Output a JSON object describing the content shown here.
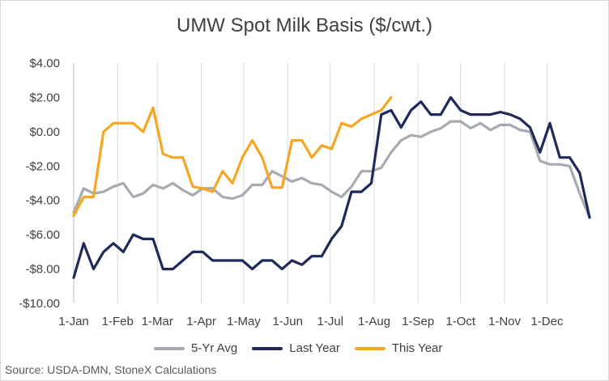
{
  "chart_data": {
    "type": "line",
    "title": "UMW Spot Milk Basis ($/cwt.)",
    "ylim": [
      -10,
      4
    ],
    "y_ticks": [
      4,
      2,
      0,
      -2,
      -4,
      -6,
      -8,
      -10
    ],
    "y_tick_labels": [
      "$4.00",
      "$2.00",
      "$0.00",
      "-$2.00",
      "-$4.00",
      "-$6.00",
      "-$8.00",
      "-$10.00"
    ],
    "x_ticks": [
      {
        "label": "1-Jan",
        "week": 0
      },
      {
        "label": "1-Feb",
        "week": 4.43
      },
      {
        "label": "1-Mar",
        "week": 8.43
      },
      {
        "label": "1-Apr",
        "week": 12.86
      },
      {
        "label": "1-May",
        "week": 17.14
      },
      {
        "label": "1-Jun",
        "week": 21.57
      },
      {
        "label": "1-Jul",
        "week": 25.86
      },
      {
        "label": "1-Aug",
        "week": 30.29
      },
      {
        "label": "1-Sep",
        "week": 34.71
      },
      {
        "label": "1-Oct",
        "week": 39.0
      },
      {
        "label": "1-Nov",
        "week": 43.43
      },
      {
        "label": "1-Dec",
        "week": 47.71
      }
    ],
    "x_axis_unit": "weeks from 1-Jan",
    "xlim": [
      0,
      52
    ],
    "grid": "vertical",
    "legend_position": "bottom",
    "series": [
      {
        "name": "5-Yr Avg",
        "color": "#a6abb1",
        "values": [
          -4.7,
          -3.3,
          -3.6,
          -3.5,
          -3.2,
          -3.0,
          -3.8,
          -3.6,
          -3.1,
          -3.3,
          -3.0,
          -3.4,
          -3.7,
          -3.3,
          -3.3,
          -3.8,
          -3.9,
          -3.7,
          -3.1,
          -3.1,
          -2.3,
          -2.6,
          -2.9,
          -2.7,
          -3.0,
          -3.1,
          -3.5,
          -3.8,
          -3.2,
          -2.3,
          -2.3,
          -2.1,
          -1.2,
          -0.5,
          -0.2,
          -0.3,
          0.0,
          0.2,
          0.6,
          0.6,
          0.2,
          0.5,
          0.1,
          0.4,
          0.4,
          0.1,
          0.0,
          -1.7,
          -1.9,
          -1.9,
          -2.0,
          -3.6,
          -5.0
        ]
      },
      {
        "name": "Last Year",
        "color": "#1f2a5a",
        "values": [
          -8.5,
          -6.5,
          -8.0,
          -7.0,
          -6.5,
          -7.0,
          -6.0,
          -6.25,
          -6.25,
          -8.0,
          -8.0,
          -7.5,
          -7.0,
          -7.0,
          -7.5,
          -7.5,
          -7.5,
          -7.5,
          -8.0,
          -7.5,
          -7.5,
          -8.0,
          -7.5,
          -7.75,
          -7.25,
          -7.25,
          -6.25,
          -5.5,
          -3.5,
          -3.5,
          -3.0,
          1.0,
          1.25,
          0.25,
          1.25,
          1.75,
          1.0,
          1.0,
          2.0,
          1.25,
          1.0,
          1.0,
          1.0,
          1.15,
          1.0,
          0.75,
          0.25,
          -1.2,
          0.5,
          -1.5,
          -1.5,
          -2.4,
          -5.0
        ]
      },
      {
        "name": "This Year",
        "color": "#f5a623",
        "values": [
          -4.9,
          -3.8,
          -3.8,
          0.0,
          0.5,
          0.5,
          0.5,
          0.0,
          1.4,
          -1.3,
          -1.5,
          -1.5,
          -3.2,
          -3.3,
          -3.5,
          -2.3,
          -3.0,
          -1.5,
          -0.5,
          -1.5,
          -3.25,
          -3.25,
          -0.5,
          -0.5,
          -1.5,
          -0.8,
          -1.0,
          0.5,
          0.3,
          0.75,
          1.0,
          1.25,
          2.0
        ]
      }
    ]
  },
  "legend": {
    "items": [
      "5-Yr Avg",
      "Last Year",
      "This Year"
    ]
  },
  "source_note": "Source: USDA-DMN, StoneX Calculations"
}
